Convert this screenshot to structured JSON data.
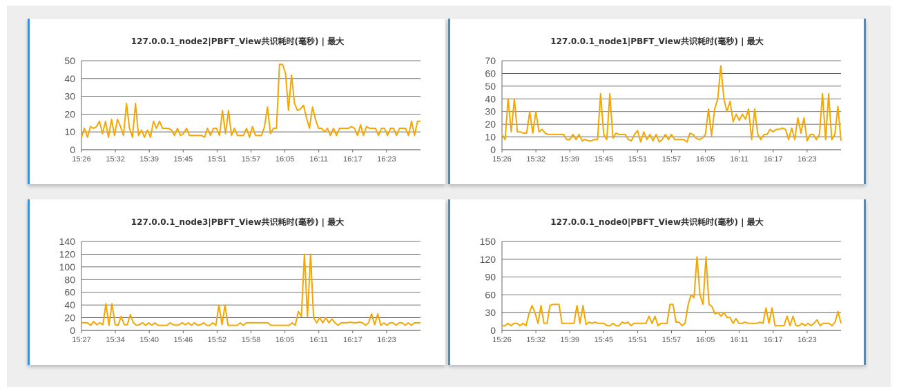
{
  "chart_data": [
    {
      "type": "line",
      "title": "127.0.0.1_node2|PBFT_View共识耗时(毫秒) | 最大",
      "xlabel": "",
      "ylabel": "",
      "ylim": [
        0,
        50
      ],
      "yticks": [
        0,
        10,
        20,
        30,
        40,
        50
      ],
      "xtick_labels": [
        "15:26",
        "15:32",
        "15:39",
        "15:45",
        "15:51",
        "15:57",
        "16:05",
        "16:11",
        "16:17",
        "16:23"
      ],
      "grid": true,
      "color": "#f5a600",
      "series": [
        {
          "values": [
            7,
            12,
            7,
            13,
            12,
            13,
            16,
            9,
            16,
            7,
            17,
            8,
            17,
            13,
            8,
            26,
            12,
            7,
            26,
            8,
            11,
            7,
            11,
            7,
            16,
            12,
            16,
            12,
            12,
            12,
            11,
            8,
            12,
            8,
            9,
            12,
            8,
            8,
            8,
            8,
            8,
            7,
            12,
            8,
            12,
            12,
            8,
            22,
            9,
            22,
            8,
            12,
            8,
            8,
            8,
            12,
            7,
            13,
            8,
            8,
            8,
            13,
            24,
            9,
            12,
            12,
            48,
            48,
            43,
            22,
            42,
            26,
            22,
            23,
            25,
            18,
            12,
            24,
            17,
            12,
            12,
            10,
            12,
            8,
            12,
            8,
            12,
            12,
            12,
            12,
            13,
            12,
            8,
            14,
            8,
            13,
            12,
            12,
            12,
            8,
            12,
            12,
            8,
            12,
            12,
            8,
            12,
            12,
            12,
            8,
            16,
            8,
            16,
            16
          ]
        }
      ]
    },
    {
      "type": "line",
      "title": "127.0.0.1_node1|PBFT_View共识耗时(毫秒) | 最大",
      "xlabel": "",
      "ylabel": "",
      "ylim": [
        0,
        70
      ],
      "yticks": [
        0,
        10,
        20,
        30,
        40,
        50,
        60,
        70
      ],
      "xtick_labels": [
        "15:26",
        "15:32",
        "15:39",
        "15:45",
        "15:51",
        "15:57",
        "16:05",
        "16:11",
        "16:17",
        "16:23"
      ],
      "grid": true,
      "color": "#f5a600",
      "series": [
        {
          "values": [
            12,
            8,
            40,
            14,
            40,
            14,
            14,
            13,
            13,
            30,
            13,
            30,
            14,
            16,
            13,
            12,
            12,
            12,
            12,
            12,
            12,
            8,
            8,
            12,
            8,
            12,
            7,
            8,
            7,
            7,
            8,
            8,
            44,
            12,
            8,
            44,
            9,
            13,
            12,
            12,
            12,
            8,
            7,
            12,
            15,
            6,
            14,
            8,
            12,
            7,
            12,
            6,
            8,
            12,
            8,
            12,
            8,
            8,
            8,
            8,
            6,
            13,
            12,
            9,
            8,
            9,
            12,
            32,
            11,
            32,
            40,
            66,
            40,
            30,
            38,
            22,
            28,
            23,
            28,
            24,
            32,
            8,
            32,
            12,
            8,
            12,
            12,
            16,
            14,
            16,
            16,
            17,
            16,
            8,
            17,
            8,
            25,
            13,
            25,
            7,
            12,
            12,
            8,
            12,
            44,
            8,
            44,
            8,
            12,
            34,
            7
          ]
        }
      ]
    },
    {
      "type": "line",
      "title": "127.0.0.1_node3|PBFT_View共识耗时(毫秒) | 最大",
      "xlabel": "",
      "ylabel": "",
      "ylim": [
        0,
        140
      ],
      "yticks": [
        0,
        20,
        40,
        60,
        80,
        100,
        120,
        140
      ],
      "xtick_labels": [
        "15:27",
        "15:34",
        "15:40",
        "15:46",
        "15:52",
        "15:58",
        "16:05",
        "16:11",
        "16:17",
        "16:23"
      ],
      "grid": true,
      "color": "#f5a600",
      "series": [
        {
          "values": [
            12,
            12,
            12,
            8,
            14,
            9,
            12,
            9,
            42,
            8,
            42,
            9,
            8,
            22,
            9,
            9,
            25,
            12,
            8,
            9,
            12,
            8,
            12,
            8,
            12,
            8,
            8,
            8,
            8,
            12,
            9,
            8,
            9,
            12,
            9,
            12,
            8,
            12,
            8,
            9,
            12,
            8,
            8,
            12,
            8,
            40,
            9,
            40,
            8,
            8,
            8,
            8,
            12,
            8,
            12,
            12,
            12,
            12,
            12,
            12,
            12,
            12,
            8,
            8,
            8,
            8,
            8,
            8,
            8,
            12,
            8,
            30,
            22,
            120,
            22,
            120,
            20,
            12,
            20,
            12,
            20,
            12,
            18,
            12,
            8,
            12,
            12,
            12,
            13,
            12,
            12,
            13,
            12,
            8,
            12,
            26,
            9,
            26,
            8,
            12,
            8,
            12,
            12,
            8,
            12,
            12,
            8,
            12,
            8,
            12,
            12,
            12
          ]
        }
      ]
    },
    {
      "type": "line",
      "title": "127.0.0.1_node0|PBFT_View共识耗时(毫秒) | 最大",
      "xlabel": "",
      "ylabel": "",
      "ylim": [
        0,
        150
      ],
      "yticks": [
        0,
        30,
        60,
        90,
        120,
        150
      ],
      "xtick_labels": [
        "15:26",
        "15:32",
        "15:39",
        "15:45",
        "15:51",
        "15:57",
        "16:05",
        "16:11",
        "16:17",
        "16:23"
      ],
      "grid": true,
      "color": "#f5a600",
      "series": [
        {
          "values": [
            8,
            8,
            12,
            8,
            12,
            12,
            8,
            12,
            8,
            28,
            42,
            30,
            12,
            42,
            12,
            12,
            42,
            44,
            44,
            44,
            12,
            12,
            12,
            12,
            12,
            42,
            12,
            42,
            10,
            14,
            12,
            14,
            12,
            12,
            12,
            8,
            8,
            12,
            8,
            8,
            14,
            12,
            14,
            8,
            12,
            12,
            12,
            12,
            12,
            24,
            12,
            24,
            8,
            12,
            12,
            12,
            44,
            44,
            14,
            14,
            8,
            12,
            42,
            60,
            55,
            124,
            60,
            44,
            124,
            44,
            40,
            28,
            30,
            24,
            30,
            22,
            22,
            12,
            20,
            12,
            12,
            14,
            12,
            12,
            12,
            12,
            14,
            12,
            38,
            12,
            38,
            8,
            8,
            8,
            8,
            24,
            8,
            24,
            8,
            8,
            12,
            8,
            12,
            8,
            12,
            18,
            8,
            12,
            12,
            12,
            8,
            14,
            32,
            12
          ]
        }
      ]
    }
  ]
}
